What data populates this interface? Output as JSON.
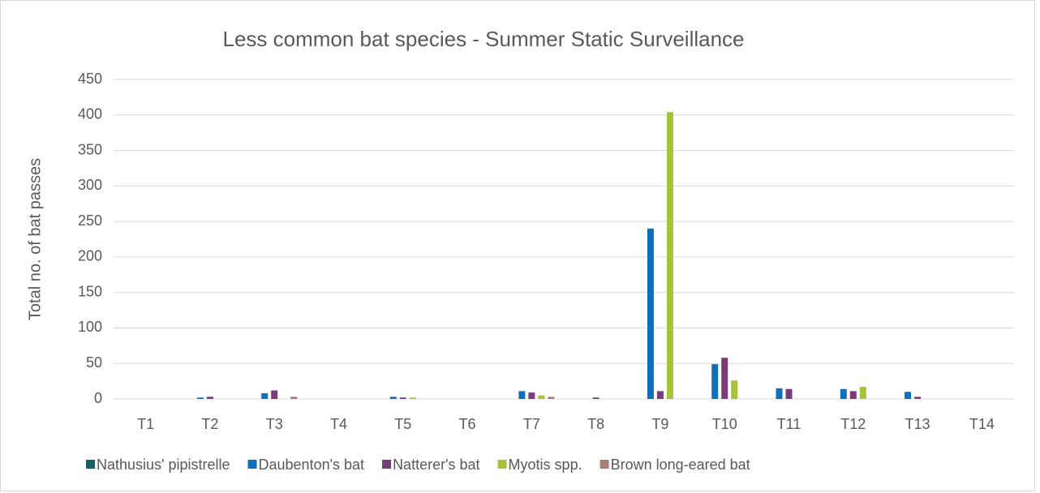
{
  "chart_data": {
    "type": "bar",
    "title": "Less common bat species - Summer Static Surveillance",
    "y_label": "Total no. of bat passes",
    "categories": [
      "T1",
      "T2",
      "T3",
      "T4",
      "T5",
      "T6",
      "T7",
      "T8",
      "T9",
      "T10",
      "T11",
      "T12",
      "T13",
      "T14"
    ],
    "series": [
      {
        "name": "Nathusius' pipistrelle",
        "color": "#1b5f66",
        "values": [
          0,
          0,
          0,
          0,
          0,
          0,
          0,
          0,
          0,
          0,
          0,
          0,
          0,
          0
        ]
      },
      {
        "name": "Daubenton's bat",
        "color": "#0f6fb8",
        "values": [
          0,
          2,
          8,
          0,
          3,
          0,
          11,
          0,
          240,
          49,
          15,
          14,
          10,
          0
        ]
      },
      {
        "name": "Natterer's bat",
        "color": "#7a3b78",
        "values": [
          0,
          3,
          12,
          0,
          2,
          0,
          9,
          2,
          11,
          58,
          14,
          11,
          3,
          0
        ]
      },
      {
        "name": "Myotis spp.",
        "color": "#a6c43a",
        "values": [
          0,
          0,
          0,
          0,
          2,
          0,
          5,
          0,
          404,
          26,
          0,
          17,
          0,
          0
        ]
      },
      {
        "name": "Brown long-eared bat",
        "color": "#a87e70",
        "values": [
          0,
          0,
          3,
          0,
          0,
          0,
          3,
          0,
          0,
          0,
          0,
          0,
          0,
          0
        ]
      }
    ],
    "ylim": [
      0,
      450
    ],
    "yticks": [
      0,
      50,
      100,
      150,
      200,
      250,
      300,
      350,
      400,
      450
    ],
    "grid": true,
    "legend": "bottom"
  }
}
